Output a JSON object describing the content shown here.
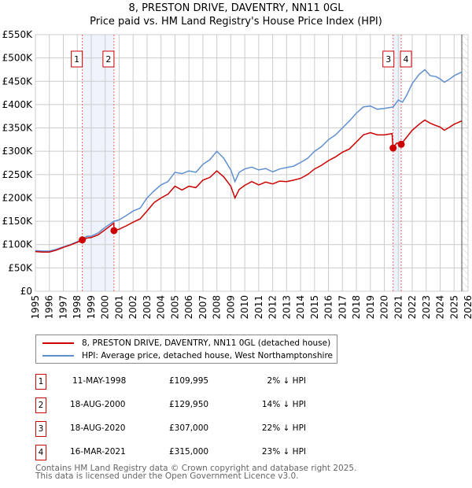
{
  "title_line1": "8, PRESTON DRIVE, DAVENTRY, NN11 0GL",
  "title_line2": "Price paid vs. HM Land Registry's House Price Index (HPI)",
  "chart_data": {
    "type": "line",
    "title": "8, PRESTON DRIVE, DAVENTRY, NN11 0GL — Price paid vs. HM Land Registry's House Price Index (HPI)",
    "xlim": [
      1995,
      2026
    ],
    "ylim": [
      0,
      550000
    ],
    "x_ticks": [
      "1995",
      "1996",
      "1997",
      "1998",
      "1999",
      "2000",
      "2001",
      "2002",
      "2003",
      "2004",
      "2005",
      "2006",
      "2007",
      "2008",
      "2009",
      "2010",
      "2011",
      "2012",
      "2013",
      "2014",
      "2015",
      "2016",
      "2017",
      "2018",
      "2019",
      "2020",
      "2021",
      "2022",
      "2023",
      "2024",
      "2025",
      "2026"
    ],
    "y_ticks": [
      {
        "v": 0,
        "label": "£0"
      },
      {
        "v": 50000,
        "label": "£50K"
      },
      {
        "v": 100000,
        "label": "£100K"
      },
      {
        "v": 150000,
        "label": "£150K"
      },
      {
        "v": 200000,
        "label": "£200K"
      },
      {
        "v": 250000,
        "label": "£250K"
      },
      {
        "v": 300000,
        "label": "£300K"
      },
      {
        "v": 350000,
        "label": "£350K"
      },
      {
        "v": 400000,
        "label": "£400K"
      },
      {
        "v": 450000,
        "label": "£450K"
      },
      {
        "v": 500000,
        "label": "£500K"
      },
      {
        "v": 550000,
        "label": "£550K"
      }
    ],
    "grid": true,
    "data_end": 2025.55,
    "series": [
      {
        "name": "8, PRESTON DRIVE, DAVENTRY, NN11 0GL (detached house)",
        "color": "#cc0000",
        "x": [
          1995,
          1995.5,
          1996,
          1996.5,
          1997,
          1997.5,
          1998,
          1998.36,
          1998.7,
          1999,
          1999.5,
          2000,
          2000.62,
          2000.63,
          2001,
          2001.5,
          2002,
          2002.5,
          2003,
          2003.5,
          2004,
          2004.5,
          2005,
          2005.5,
          2006,
          2006.5,
          2007,
          2007.5,
          2008,
          2008.5,
          2009,
          2009.3,
          2009.6,
          2010,
          2010.5,
          2011,
          2011.5,
          2012,
          2012.5,
          2013,
          2013.5,
          2014,
          2014.5,
          2015,
          2015.5,
          2016,
          2016.5,
          2017,
          2017.5,
          2018,
          2018.5,
          2019,
          2019.5,
          2020,
          2020.55,
          2020.63,
          2020.9,
          2021.2,
          2021.6,
          2022,
          2022.5,
          2022.9,
          2023.3,
          2023.7,
          2024,
          2024.3,
          2024.7,
          2025,
          2025.55
        ],
        "y": [
          85000,
          84000,
          84000,
          88000,
          94000,
          99000,
          105000,
          109995,
          114000,
          115000,
          121000,
          132000,
          146000,
          129950,
          133000,
          140000,
          148000,
          155000,
          172000,
          190000,
          200000,
          208000,
          225000,
          217000,
          225000,
          222000,
          238000,
          244000,
          258000,
          245000,
          225000,
          200000,
          218000,
          227000,
          235000,
          228000,
          234000,
          230000,
          236000,
          235000,
          238000,
          242000,
          250000,
          262000,
          270000,
          280000,
          288000,
          298000,
          305000,
          320000,
          335000,
          340000,
          335000,
          335000,
          338000,
          307000,
          318000,
          315000,
          330000,
          345000,
          358000,
          367000,
          360000,
          355000,
          352000,
          345000,
          352000,
          358000,
          365000
        ]
      },
      {
        "name": "HPI: Average price, detached house, West Northamptonshire",
        "color": "#6090d0",
        "x": [
          1995,
          1995.5,
          1996,
          1996.5,
          1997,
          1997.5,
          1998,
          1998.36,
          1998.7,
          1999,
          1999.5,
          2000,
          2000.63,
          2001,
          2001.5,
          2002,
          2002.5,
          2003,
          2003.5,
          2004,
          2004.5,
          2005,
          2005.5,
          2006,
          2006.5,
          2007,
          2007.5,
          2008,
          2008.5,
          2009,
          2009.3,
          2009.6,
          2010,
          2010.5,
          2011,
          2011.5,
          2012,
          2012.5,
          2013,
          2013.5,
          2014,
          2014.5,
          2015,
          2015.5,
          2016,
          2016.5,
          2017,
          2017.5,
          2018,
          2018.5,
          2019,
          2019.5,
          2020,
          2020.63,
          2021,
          2021.3,
          2021.6,
          2022,
          2022.5,
          2022.9,
          2023.3,
          2023.7,
          2024,
          2024.3,
          2024.7,
          2025,
          2025.55
        ],
        "y": [
          87000,
          86000,
          86000,
          90000,
          95000,
          100000,
          106000,
          112000,
          118000,
          118000,
          125000,
          137000,
          150000,
          153000,
          162000,
          172000,
          178000,
          200000,
          215000,
          228000,
          235000,
          255000,
          252000,
          258000,
          255000,
          272000,
          282000,
          300000,
          285000,
          260000,
          235000,
          255000,
          262000,
          266000,
          260000,
          263000,
          256000,
          262000,
          265000,
          268000,
          276000,
          285000,
          300000,
          310000,
          325000,
          335000,
          350000,
          365000,
          382000,
          395000,
          397000,
          390000,
          392000,
          395000,
          410000,
          405000,
          420000,
          445000,
          465000,
          475000,
          462000,
          460000,
          455000,
          448000,
          455000,
          462000,
          470000
        ]
      }
    ],
    "sales": [
      {
        "id": "1",
        "x": 1998.36,
        "price": 109995
      },
      {
        "id": "2",
        "x": 2000.63,
        "price": 129950
      },
      {
        "id": "3",
        "x": 2020.63,
        "price": 307000
      },
      {
        "id": "4",
        "x": 2021.21,
        "price": 315000
      }
    ]
  },
  "legend": {
    "property": "8, PRESTON DRIVE, DAVENTRY, NN11 0GL (detached house)",
    "hpi": "HPI: Average price, detached house, West Northamptonshire"
  },
  "table": [
    {
      "id": "1",
      "date": "11-MAY-1998",
      "price": "£109,995",
      "hpi": "2% ↓ HPI"
    },
    {
      "id": "2",
      "date": "18-AUG-2000",
      "price": "£129,950",
      "hpi": "14% ↓ HPI"
    },
    {
      "id": "3",
      "date": "18-AUG-2020",
      "price": "£307,000",
      "hpi": "22% ↓ HPI"
    },
    {
      "id": "4",
      "date": "16-MAR-2021",
      "price": "£315,000",
      "hpi": "23% ↓ HPI"
    }
  ],
  "footer_line1": "Contains HM Land Registry data © Crown copyright and database right 2025.",
  "footer_line2": "This data is licensed under the Open Government Licence v3.0."
}
